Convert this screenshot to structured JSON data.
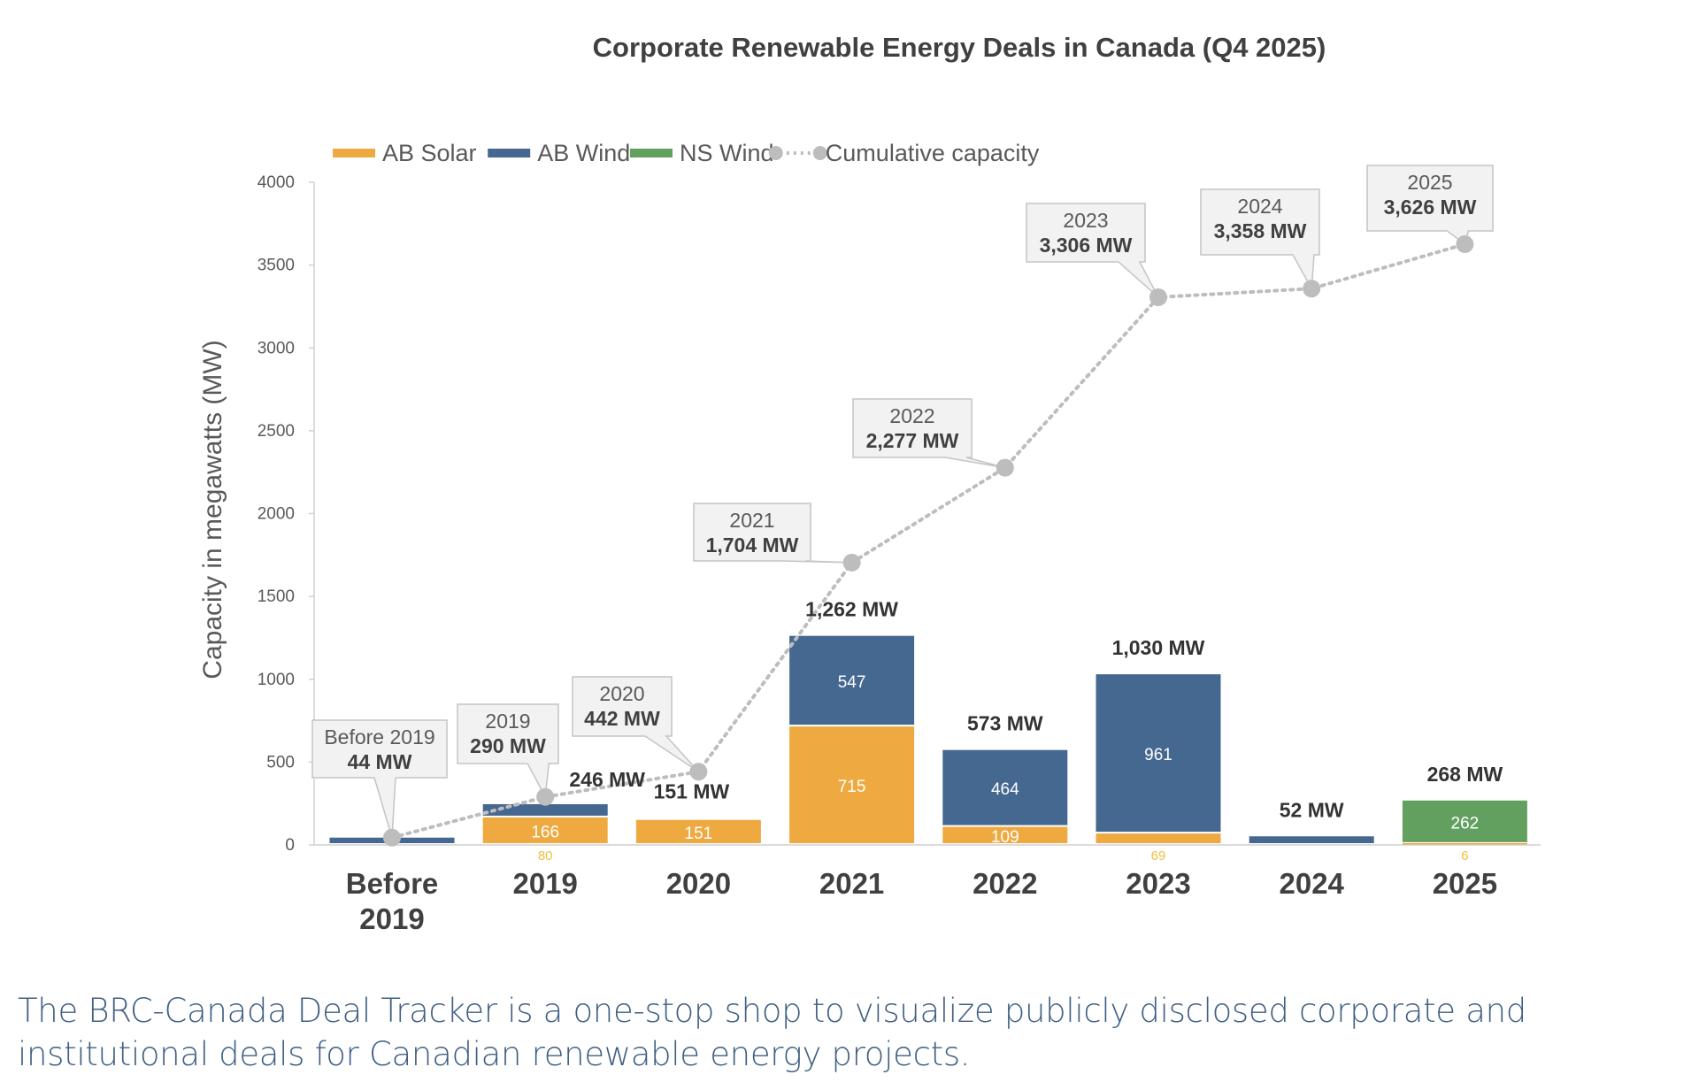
{
  "chart_data": {
    "type": "bar",
    "stacked": true,
    "title": "Corporate Renewable Energy Deals in Canada (Q4 2025)",
    "xlabel": "",
    "ylabel": "Capacity in megawatts (MW)",
    "ylim": [
      0,
      4000
    ],
    "yticks": [
      "0",
      "500",
      "1000",
      "1500",
      "2000",
      "2500",
      "3000",
      "3500",
      "4000"
    ],
    "grid": false,
    "legend_position": "top-left",
    "categories": [
      "Before 2019",
      "2019",
      "2020",
      "2021",
      "2022",
      "2023",
      "2024",
      "2025"
    ],
    "series": [
      {
        "name": "AB Solar",
        "color": "#EEAA40",
        "values": [
          0,
          166,
          151,
          715,
          109,
          69,
          0,
          6
        ],
        "labels": [
          "",
          "166",
          "151",
          "715",
          "109",
          "69",
          "",
          "6"
        ]
      },
      {
        "name": "AB Wind",
        "color": "#456891",
        "values": [
          44,
          80,
          0,
          547,
          464,
          961,
          52,
          0
        ],
        "labels": [
          "",
          "80",
          "",
          "547",
          "464",
          "961",
          "",
          ""
        ]
      },
      {
        "name": "NS Wind",
        "color": "#62A060",
        "values": [
          0,
          0,
          0,
          0,
          0,
          0,
          0,
          262
        ],
        "labels": [
          "",
          "",
          "",
          "",
          "",
          "",
          "",
          "262"
        ]
      }
    ],
    "totals": [
      "",
      "246 MW",
      "151 MW",
      "1,262 MW",
      "573 MW",
      "1,030 MW",
      "52 MW",
      "268 MW"
    ],
    "cumulative": {
      "name": "Cumulative capacity",
      "color": "#BDBDBD",
      "values": [
        44,
        290,
        442,
        1704,
        2277,
        3306,
        3358,
        3626
      ],
      "callout_titles": [
        "Before 2019",
        "2019",
        "2020",
        "2021",
        "2022",
        "2023",
        "2024",
        "2025"
      ],
      "callout_values": [
        "44 MW",
        "290 MW",
        "442 MW",
        "1,704 MW",
        "2,277 MW",
        "3,306 MW",
        "3,358 MW",
        "3,626 MW"
      ]
    }
  },
  "footer_text": "The BRC-Canada Deal Tracker is a one-stop shop to visualize publicly disclosed corporate and institutional deals for Canadian renewable energy projects."
}
